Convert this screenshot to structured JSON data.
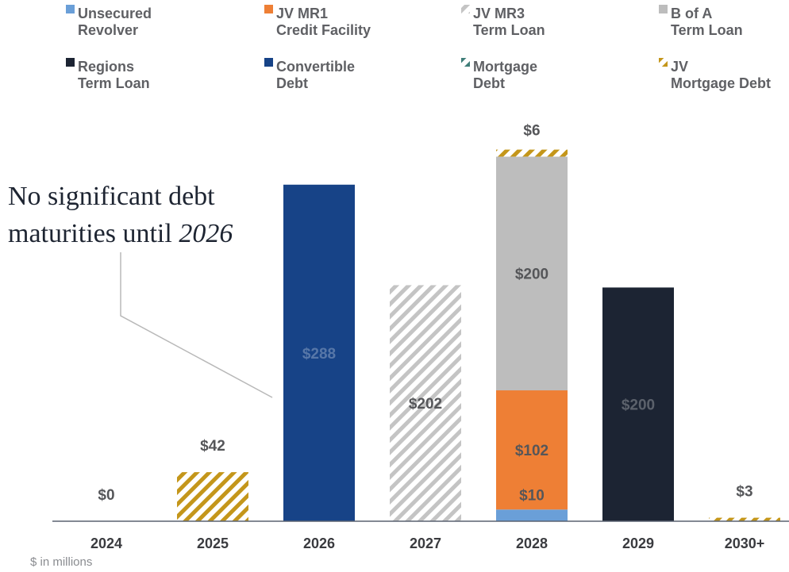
{
  "chart_data": {
    "type": "bar",
    "stacked": true,
    "categories": [
      "2024",
      "2025",
      "2026",
      "2027",
      "2028",
      "2029",
      "2030+"
    ],
    "series": [
      {
        "name": "Unsecured Revolver",
        "values": [
          0,
          0,
          0,
          0,
          10,
          0,
          0
        ],
        "color": "#6a9fd8",
        "pattern": "solid"
      },
      {
        "name": "JV MR1 Credit Facility",
        "values": [
          0,
          0,
          0,
          0,
          102,
          0,
          0
        ],
        "color": "#ee7f35",
        "pattern": "solid"
      },
      {
        "name": "JV MR3 Term Loan",
        "values": [
          0,
          0,
          0,
          202,
          0,
          0,
          0
        ],
        "color": "#c4c4c4",
        "pattern": "hatch"
      },
      {
        "name": "B of A Term Loan",
        "values": [
          0,
          0,
          0,
          0,
          200,
          0,
          0
        ],
        "color": "#bdbdbd",
        "pattern": "solid"
      },
      {
        "name": "Regions Term Loan",
        "values": [
          0,
          0,
          0,
          0,
          0,
          200,
          0
        ],
        "color": "#1c2433",
        "pattern": "solid"
      },
      {
        "name": "Convertible Debt",
        "values": [
          0,
          0,
          288,
          0,
          0,
          0,
          0
        ],
        "color": "#174387",
        "pattern": "solid"
      },
      {
        "name": "Mortgage Debt",
        "values": [
          0,
          0,
          0,
          0,
          0,
          0,
          0
        ],
        "color": "#3f7d78",
        "pattern": "hatch"
      },
      {
        "name": "JV Mortgage Debt",
        "values": [
          0,
          42,
          0,
          0,
          6,
          0,
          3
        ],
        "color": "#c4961a",
        "pattern": "hatch"
      }
    ],
    "legend": {
      "placement": "top",
      "entries": [
        {
          "line1": "Unsecured",
          "line2": "Revolver"
        },
        {
          "line1": "JV MR1",
          "line2": "Credit Facility"
        },
        {
          "line1": "JV MR3",
          "line2": "Term Loan"
        },
        {
          "line1": "B of A",
          "line2": "Term Loan"
        },
        {
          "line1": "Regions",
          "line2": "Term Loan"
        },
        {
          "line1": "Convertible",
          "line2": "Debt"
        },
        {
          "line1": "Mortgage",
          "line2": "Debt"
        },
        {
          "line1": "JV",
          "line2": "Mortgage Debt"
        }
      ]
    },
    "labels": [
      {
        "category": "2024",
        "series": "total",
        "text": "$0"
      },
      {
        "category": "2025",
        "series": "total",
        "text": "$42"
      },
      {
        "category": "2026",
        "series": "Convertible Debt",
        "text": "$288"
      },
      {
        "category": "2027",
        "series": "JV MR3 Term Loan",
        "text": "$202"
      },
      {
        "category": "2028",
        "series": "Unsecured Revolver",
        "text": "$10"
      },
      {
        "category": "2028",
        "series": "JV MR1 Credit Facility",
        "text": "$102"
      },
      {
        "category": "2028",
        "series": "B of A Term Loan",
        "text": "$200"
      },
      {
        "category": "2028",
        "series": "JV Mortgage Debt",
        "text": "$6"
      },
      {
        "category": "2029",
        "series": "Regions Term Loan",
        "text": "$200"
      },
      {
        "category": "2030+",
        "series": "total",
        "text": "$3"
      }
    ],
    "annotation": {
      "line1": "No significant debt",
      "line2_prefix": "maturities until ",
      "line2_emph": "2026"
    },
    "units_note": "$ in millions",
    "ylim": [
      0,
      320
    ],
    "grid": false
  }
}
